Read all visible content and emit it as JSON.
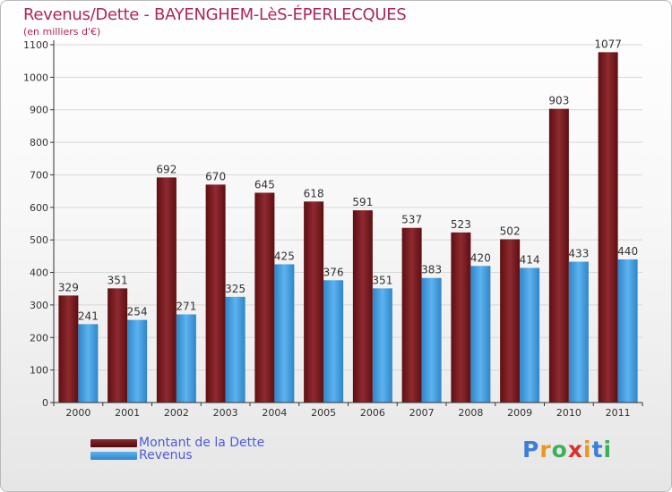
{
  "title": "Revenus/Dette - BAYENGHEM-LèS-ÉPERLECQUES",
  "subtitle": "(en milliers d'€)",
  "colors": {
    "dette": "#7a1a1f",
    "revenus": "#3f9fe0",
    "label": "#333333",
    "axis": "#333333",
    "grid": "#d7d7d7"
  },
  "chart_data": {
    "type": "bar",
    "categories": [
      "2000",
      "2001",
      "2002",
      "2003",
      "2004",
      "2005",
      "2006",
      "2007",
      "2008",
      "2009",
      "2010",
      "2011"
    ],
    "series": [
      {
        "name": "Montant de la Dette",
        "values": [
          329,
          351,
          692,
          670,
          645,
          618,
          591,
          537,
          523,
          502,
          903,
          1077
        ]
      },
      {
        "name": "Revenus",
        "values": [
          241,
          254,
          271,
          325,
          425,
          376,
          351,
          383,
          420,
          414,
          433,
          440
        ]
      }
    ],
    "ylim": [
      0,
      1100
    ],
    "yticks": [
      0,
      100,
      200,
      300,
      400,
      500,
      600,
      700,
      800,
      900,
      1000,
      1100
    ],
    "grid": true,
    "legend": "bottom-left"
  },
  "legend": {
    "dette_label": "Montant de la Dette",
    "revenus_label": "Revenus"
  },
  "logo": {
    "text": "Proxiti"
  }
}
